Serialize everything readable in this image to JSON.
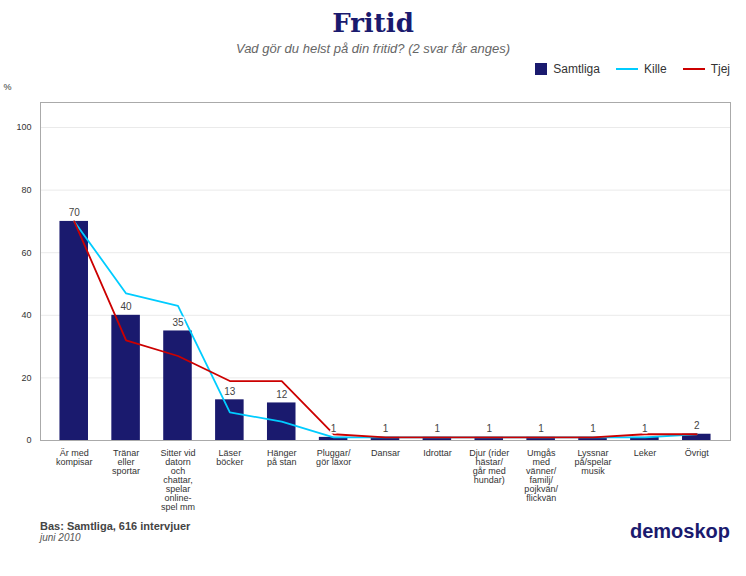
{
  "chart_data": {
    "type": "bar",
    "title": "Fritid",
    "subtitle": "Vad gör du helst på din fritid? (2 svar får anges)",
    "categories": [
      "Är med\nkompisar",
      "Tränar\neller\nsportar",
      "Sitter vid\ndatorn\noch\nchattar,\nspelar\nonline-\nspel mm",
      "Läser\nböcker",
      "Hänger\npå stan",
      "Pluggar/\ngör läxor",
      "Dansar",
      "Idrottar",
      "Djur (rider\nhästar/\ngår med\nhundar)",
      "Umgås\nmed\nvänner/\nfamilj/\npojkvän/\nflickvän",
      "Lyssnar\npå/spelar\nmusik",
      "Leker",
      "Övrigt"
    ],
    "series": [
      {
        "name": "Samtliga",
        "type": "bar",
        "color": "#1a1a6e",
        "data_labels": true,
        "values": [
          70,
          40,
          35,
          13,
          12,
          1,
          1,
          1,
          1,
          1,
          1,
          1,
          2
        ]
      },
      {
        "name": "Kille",
        "type": "line",
        "color": "#00ccff",
        "values": [
          70,
          47,
          43,
          9,
          6,
          1,
          1,
          1,
          1,
          1,
          1,
          1,
          2
        ]
      },
      {
        "name": "Tjej",
        "type": "line",
        "color": "#cc0000",
        "values": [
          70,
          32,
          27,
          19,
          19,
          2,
          1,
          1,
          1,
          1,
          1,
          2,
          2
        ]
      }
    ],
    "y_label": "%",
    "ylim": [
      0,
      108
    ],
    "yticks": [
      0,
      20,
      40,
      60,
      80,
      100
    ],
    "grid": true,
    "legend": "upper right",
    "annotations": [
      "Bas: Samtliga, 616 intervjuer",
      "juni 2010",
      "demoskop"
    ]
  }
}
